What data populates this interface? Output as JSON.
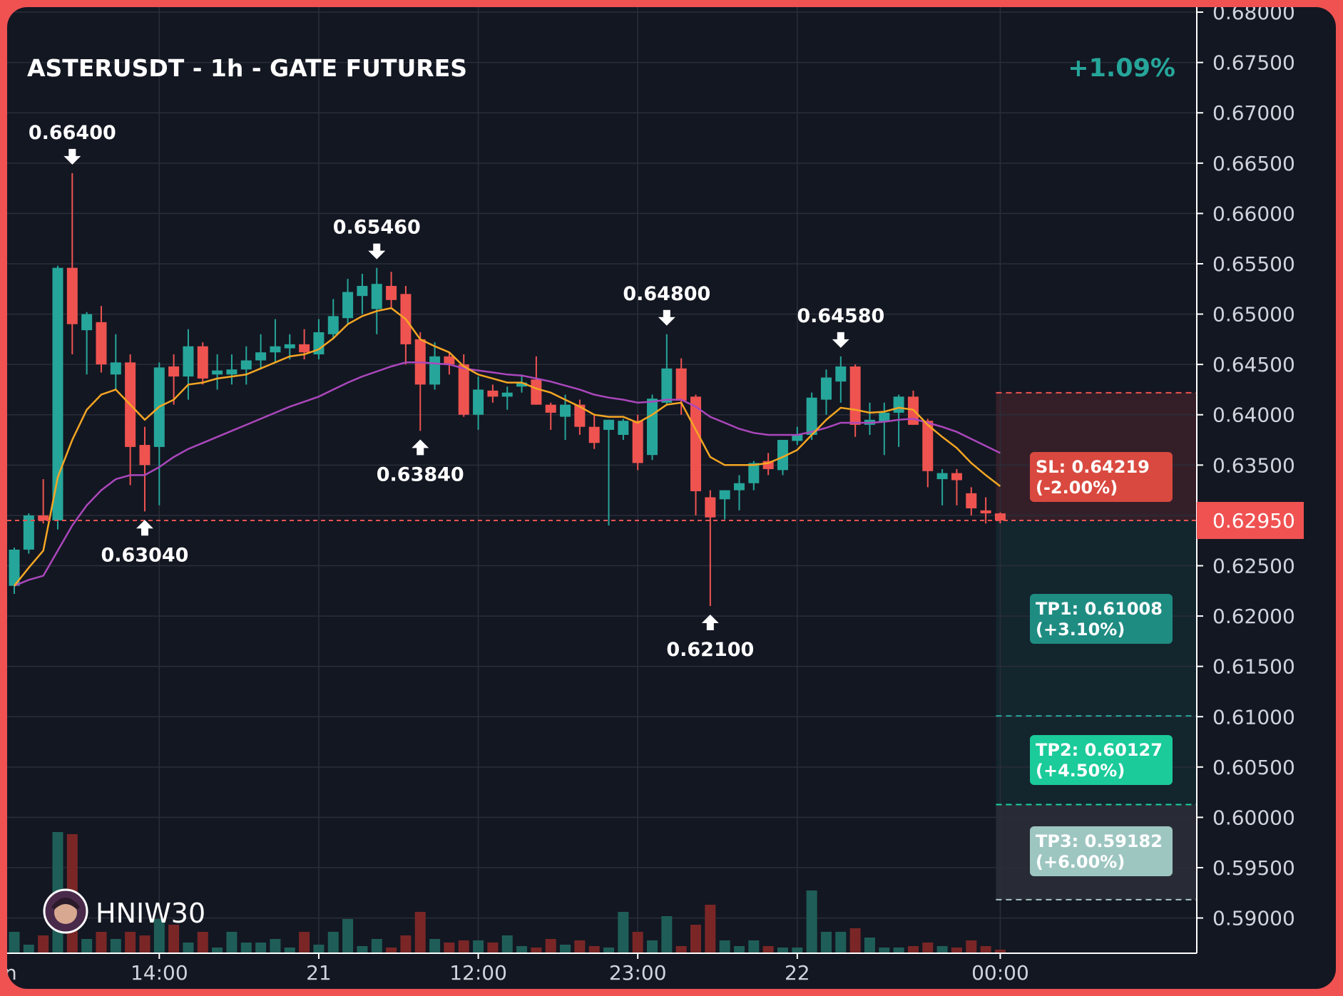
{
  "chart_data": {
    "type": "candlestick",
    "title": "ASTERUSDT - 1h - GATE FUTURES",
    "change": "+1.09%",
    "watermark": "HNIW30",
    "ylim": [
      0.5865,
      0.6805
    ],
    "y_ticks": [
      "0.68000",
      "0.67500",
      "0.67000",
      "0.66500",
      "0.66000",
      "0.65500",
      "0.65000",
      "0.64500",
      "0.64000",
      "0.63500",
      "0.63000",
      "0.62500",
      "0.62000",
      "0.61500",
      "0.61000",
      "0.60500",
      "0.60000",
      "0.59500",
      "0.59000"
    ],
    "x_ticks": [
      {
        "label": "14:00",
        "index": 10
      },
      {
        "label": "21",
        "index": 21
      },
      {
        "label": "12:00",
        "index": 32
      },
      {
        "label": "23:00",
        "index": 43
      },
      {
        "label": "22",
        "index": 54
      },
      {
        "label": "00:00",
        "index": 68
      }
    ],
    "left_cut_label": "n",
    "current_price": "0.62950",
    "current_price_value": 0.6295,
    "levels": [
      {
        "key": "sl",
        "label": "SL: 0.64219",
        "pct": "(-2.00%)",
        "value": 0.64219
      },
      {
        "key": "tp1",
        "label": "TP1: 0.61008",
        "pct": "(+3.10%)",
        "value": 0.61008
      },
      {
        "key": "tp2",
        "label": "TP2: 0.60127",
        "pct": "(+4.50%)",
        "value": 0.60127
      },
      {
        "key": "tp3",
        "label": "TP3: 0.59182",
        "pct": "(+6.00%)",
        "value": 0.59182
      }
    ],
    "annotations": [
      {
        "label": "0.66400",
        "value": 0.664,
        "index": 4,
        "type": "high"
      },
      {
        "label": "0.63040",
        "value": 0.6304,
        "index": 9,
        "type": "low"
      },
      {
        "label": "0.65460",
        "value": 0.6546,
        "index": 25,
        "type": "high"
      },
      {
        "label": "0.63840",
        "value": 0.6384,
        "index": 28,
        "type": "low"
      },
      {
        "label": "0.64800",
        "value": 0.648,
        "index": 45,
        "type": "high"
      },
      {
        "label": "0.62100",
        "value": 0.621,
        "index": 48,
        "type": "low"
      },
      {
        "label": "0.64580",
        "value": 0.6458,
        "index": 57,
        "type": "high"
      }
    ],
    "candles": [
      [
        0.623,
        0.6268,
        0.6222,
        0.6266
      ],
      [
        0.6266,
        0.6302,
        0.6262,
        0.63
      ],
      [
        0.63,
        0.6336,
        0.6292,
        0.6295
      ],
      [
        0.6295,
        0.6548,
        0.6286,
        0.6546
      ],
      [
        0.6546,
        0.664,
        0.646,
        0.649
      ],
      [
        0.6484,
        0.6502,
        0.644,
        0.65
      ],
      [
        0.6492,
        0.6508,
        0.6442,
        0.645
      ],
      [
        0.644,
        0.648,
        0.6425,
        0.6452
      ],
      [
        0.6452,
        0.646,
        0.633,
        0.6368
      ],
      [
        0.637,
        0.6388,
        0.6304,
        0.635
      ],
      [
        0.6368,
        0.6452,
        0.631,
        0.6447
      ],
      [
        0.6448,
        0.646,
        0.641,
        0.6438
      ],
      [
        0.6438,
        0.6485,
        0.6415,
        0.6468
      ],
      [
        0.6468,
        0.6472,
        0.643,
        0.6436
      ],
      [
        0.644,
        0.646,
        0.6425,
        0.6444
      ],
      [
        0.644,
        0.646,
        0.643,
        0.6445
      ],
      [
        0.6445,
        0.6468,
        0.643,
        0.6454
      ],
      [
        0.6454,
        0.648,
        0.6445,
        0.6462
      ],
      [
        0.6462,
        0.6495,
        0.6452,
        0.6468
      ],
      [
        0.6466,
        0.648,
        0.6455,
        0.647
      ],
      [
        0.647,
        0.6485,
        0.6455,
        0.6462
      ],
      [
        0.646,
        0.6495,
        0.6455,
        0.6482
      ],
      [
        0.648,
        0.6515,
        0.6475,
        0.6498
      ],
      [
        0.6496,
        0.6535,
        0.649,
        0.6522
      ],
      [
        0.6518,
        0.654,
        0.65,
        0.6528
      ],
      [
        0.6505,
        0.6546,
        0.648,
        0.653
      ],
      [
        0.6528,
        0.6542,
        0.6505,
        0.6514
      ],
      [
        0.652,
        0.6528,
        0.645,
        0.647
      ],
      [
        0.6475,
        0.6482,
        0.6384,
        0.643
      ],
      [
        0.643,
        0.6472,
        0.6425,
        0.6458
      ],
      [
        0.6458,
        0.6462,
        0.644,
        0.645
      ],
      [
        0.645,
        0.646,
        0.6398,
        0.64
      ],
      [
        0.64,
        0.6438,
        0.6385,
        0.6425
      ],
      [
        0.6424,
        0.643,
        0.6412,
        0.6418
      ],
      [
        0.6418,
        0.6428,
        0.6405,
        0.6422
      ],
      [
        0.6428,
        0.644,
        0.6422,
        0.6432
      ],
      [
        0.6435,
        0.6458,
        0.641,
        0.641
      ],
      [
        0.641,
        0.6412,
        0.6385,
        0.6402
      ],
      [
        0.6398,
        0.642,
        0.6375,
        0.641
      ],
      [
        0.641,
        0.6415,
        0.638,
        0.6388
      ],
      [
        0.6388,
        0.64,
        0.6366,
        0.6372
      ],
      [
        0.6385,
        0.6395,
        0.629,
        0.6395
      ],
      [
        0.638,
        0.6396,
        0.6375,
        0.6394
      ],
      [
        0.6394,
        0.64,
        0.6345,
        0.6352
      ],
      [
        0.636,
        0.642,
        0.6355,
        0.6416
      ],
      [
        0.6412,
        0.648,
        0.641,
        0.6446
      ],
      [
        0.6446,
        0.6456,
        0.64,
        0.6414
      ],
      [
        0.6418,
        0.642,
        0.63,
        0.6324
      ],
      [
        0.6318,
        0.6325,
        0.621,
        0.6298
      ],
      [
        0.6316,
        0.6325,
        0.6296,
        0.6325
      ],
      [
        0.6325,
        0.634,
        0.6305,
        0.6332
      ],
      [
        0.6332,
        0.6354,
        0.6325,
        0.6352
      ],
      [
        0.6354,
        0.6362,
        0.634,
        0.6346
      ],
      [
        0.6345,
        0.6375,
        0.634,
        0.6375
      ],
      [
        0.6374,
        0.6388,
        0.637,
        0.638
      ],
      [
        0.638,
        0.6422,
        0.6375,
        0.6417
      ],
      [
        0.6415,
        0.6445,
        0.64,
        0.6437
      ],
      [
        0.6433,
        0.6458,
        0.6412,
        0.6448
      ],
      [
        0.6448,
        0.645,
        0.6378,
        0.639
      ],
      [
        0.639,
        0.6412,
        0.638,
        0.6395
      ],
      [
        0.6393,
        0.6412,
        0.636,
        0.6402
      ],
      [
        0.6402,
        0.642,
        0.6368,
        0.6418
      ],
      [
        0.6418,
        0.6424,
        0.639,
        0.639
      ],
      [
        0.6394,
        0.6396,
        0.6328,
        0.6344
      ],
      [
        0.6336,
        0.6346,
        0.631,
        0.6342
      ],
      [
        0.6342,
        0.6346,
        0.631,
        0.6335
      ],
      [
        0.6322,
        0.6328,
        0.63,
        0.6307
      ],
      [
        0.6305,
        0.6318,
        0.6292,
        0.6302
      ],
      [
        0.6302,
        0.6303,
        0.6292,
        0.6295
      ]
    ],
    "ema_fast": [
      0.623,
      0.6248,
      0.6265,
      0.6338,
      0.6375,
      0.6405,
      0.642,
      0.6425,
      0.641,
      0.6395,
      0.6408,
      0.6415,
      0.643,
      0.6432,
      0.6436,
      0.6438,
      0.644,
      0.6446,
      0.6452,
      0.6458,
      0.646,
      0.6465,
      0.6476,
      0.649,
      0.6498,
      0.6503,
      0.6506,
      0.6495,
      0.6475,
      0.6468,
      0.6462,
      0.6448,
      0.644,
      0.6436,
      0.6432,
      0.6432,
      0.6426,
      0.6422,
      0.6415,
      0.6408,
      0.64,
      0.6398,
      0.6398,
      0.6392,
      0.64,
      0.641,
      0.6412,
      0.6385,
      0.6358,
      0.635,
      0.635,
      0.635,
      0.6352,
      0.6358,
      0.6365,
      0.638,
      0.6395,
      0.6407,
      0.6405,
      0.6402,
      0.6403,
      0.6407,
      0.6405,
      0.639,
      0.6378,
      0.6367,
      0.6352,
      0.634,
      0.6329
    ],
    "ema_slow": [
      0.623,
      0.6236,
      0.624,
      0.6265,
      0.629,
      0.631,
      0.6325,
      0.6336,
      0.634,
      0.634,
      0.6348,
      0.6358,
      0.6366,
      0.6372,
      0.6378,
      0.6384,
      0.639,
      0.6396,
      0.6402,
      0.6408,
      0.6413,
      0.6418,
      0.6425,
      0.6432,
      0.6438,
      0.6443,
      0.6448,
      0.6452,
      0.6452,
      0.6451,
      0.645,
      0.6446,
      0.6444,
      0.6442,
      0.644,
      0.6439,
      0.6436,
      0.6433,
      0.6429,
      0.6425,
      0.642,
      0.6417,
      0.6415,
      0.6412,
      0.6413,
      0.6415,
      0.6415,
      0.6408,
      0.6398,
      0.6392,
      0.6386,
      0.6382,
      0.638,
      0.638,
      0.638,
      0.6383,
      0.6387,
      0.6392,
      0.6392,
      0.6392,
      0.6393,
      0.6395,
      0.6396,
      0.6392,
      0.6388,
      0.6383,
      0.6376,
      0.6369,
      0.6362
    ],
    "volumes": [
      30,
      12,
      25,
      170,
      167,
      20,
      30,
      20,
      30,
      25,
      48,
      40,
      15,
      30,
      8,
      30,
      15,
      15,
      20,
      8,
      30,
      12,
      30,
      48,
      10,
      20,
      8,
      25,
      58,
      20,
      15,
      18,
      18,
      15,
      25,
      10,
      8,
      20,
      12,
      18,
      10,
      8,
      58,
      30,
      18,
      52,
      10,
      40,
      68,
      18,
      10,
      18,
      10,
      8,
      8,
      88,
      30,
      30,
      35,
      22,
      8,
      8,
      10,
      15,
      10,
      8,
      18,
      10,
      5
    ]
  }
}
